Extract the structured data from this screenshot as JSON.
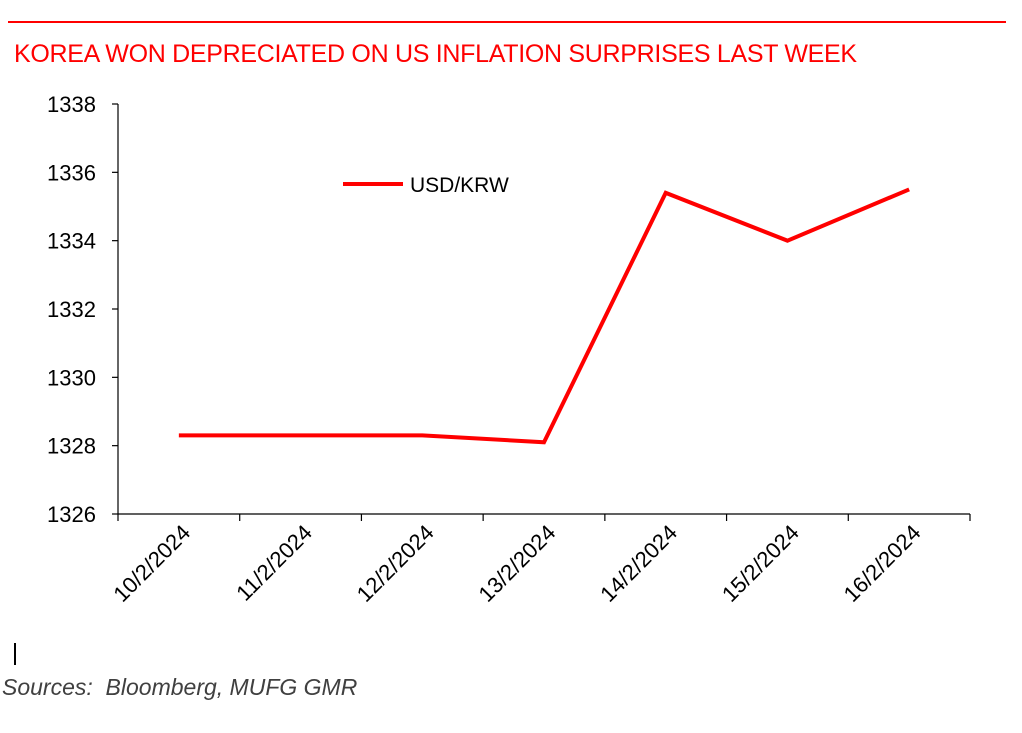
{
  "title": "KOREA WON DEPRECIATED ON US INFLATION SURPRISES LAST WEEK",
  "source_note": "Sources:  Bloomberg, MUFG GMR",
  "colors": {
    "accent": "#ff0000",
    "axis": "#000000",
    "text": "#000000"
  },
  "chart_data": {
    "type": "line",
    "categories": [
      "10/2/2024",
      "11/2/2024",
      "12/2/2024",
      "13/2/2024",
      "14/2/2024",
      "15/2/2024",
      "16/2/2024"
    ],
    "series": [
      {
        "name": "USD/KRW",
        "color": "#ff0000",
        "values": [
          1328.3,
          1328.3,
          1328.3,
          1328.1,
          1335.4,
          1334.0,
          1335.5
        ]
      }
    ],
    "yticks": [
      1326,
      1328,
      1330,
      1332,
      1334,
      1336,
      1338
    ],
    "ylim": [
      1326,
      1338
    ],
    "grid": false,
    "legend": "top-center"
  }
}
